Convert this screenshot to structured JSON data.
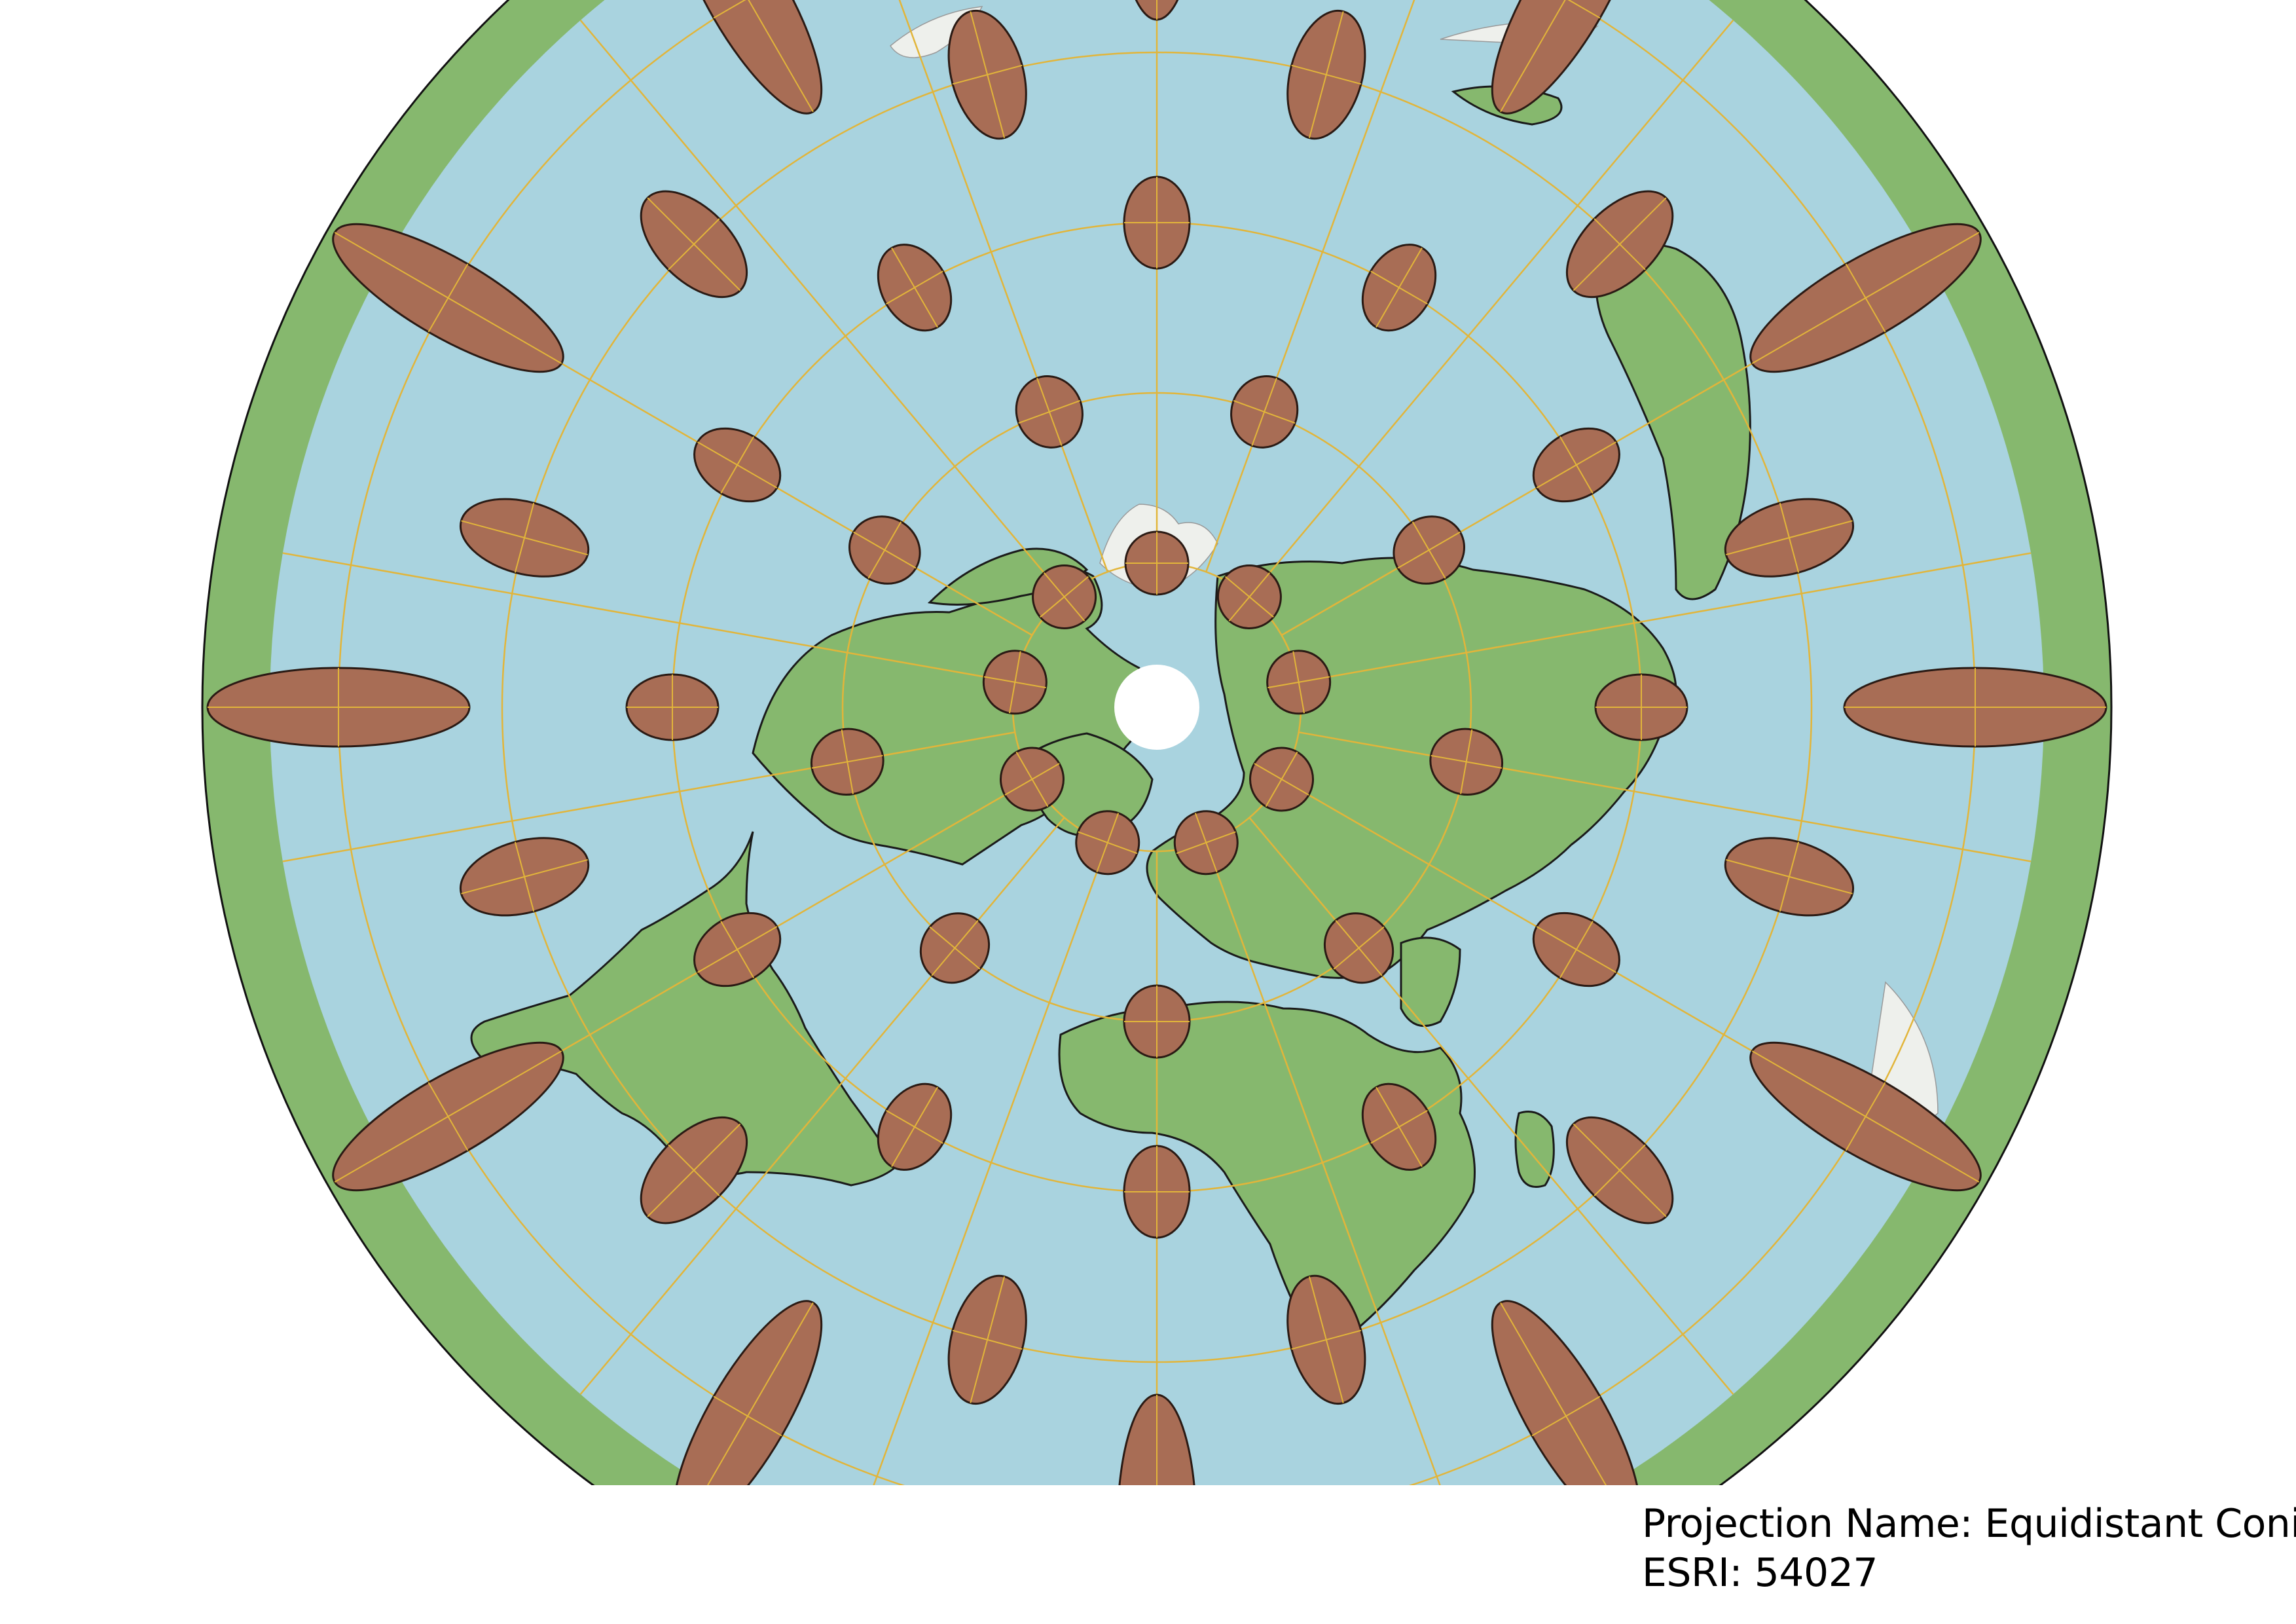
{
  "caption": {
    "projection_line": "Projection Name: Equidistant Conic",
    "esri_line": "ESRI: 54027"
  },
  "colors": {
    "ocean": "#a9d3df",
    "land": "#86b86e",
    "land_outline": "#1a1a1a",
    "ice": "#eef0ec",
    "outer_ring": "#86b86e",
    "indicatrix_fill": "#a86d55",
    "indicatrix_stroke": "#2a1a14",
    "graticule": "#e2b53a",
    "pole_hole": "#ffffff",
    "page_background": "#ffffff",
    "caption_text": "#000000"
  },
  "map": {
    "projection": "Equidistant Conic",
    "esri_code": "54027",
    "features": [
      "ocean",
      "land",
      "country-borders",
      "ice-sheets",
      "graticule",
      "tissot-indicatrices",
      "north-pole-hole"
    ]
  }
}
